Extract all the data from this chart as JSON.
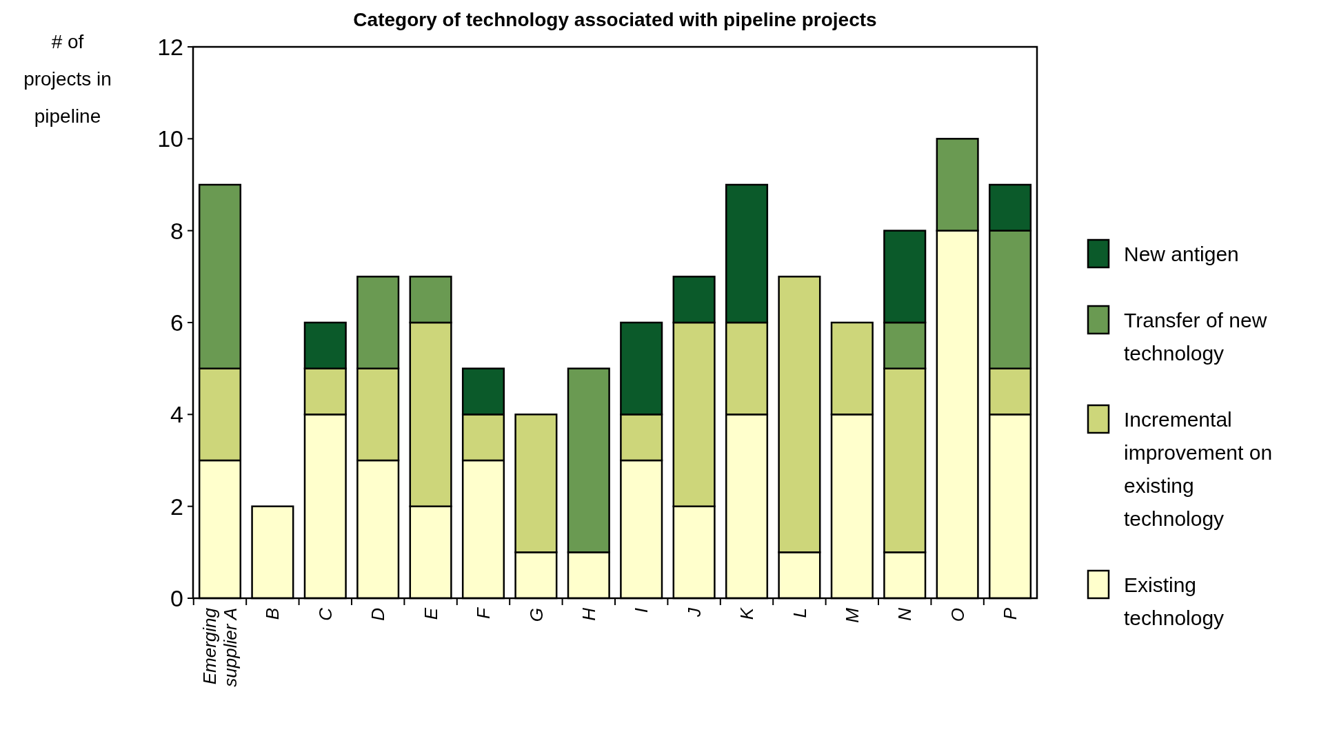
{
  "chart_data": {
    "type": "bar",
    "stacked": true,
    "title": "Category of technology associated with pipeline projects",
    "ylabel": "# of projects in pipeline",
    "categories": [
      "Emerging supplier A",
      "B",
      "C",
      "D",
      "E",
      "F",
      "G",
      "H",
      "I",
      "J",
      "K",
      "L",
      "M",
      "N",
      "O",
      "P"
    ],
    "series": [
      {
        "name": "Existing technology",
        "color": "#ffffcc",
        "values": [
          3,
          2,
          4,
          3,
          2,
          3,
          1,
          1,
          3,
          2,
          4,
          1,
          4,
          1,
          8,
          4
        ]
      },
      {
        "name": "Incremental improvement on existing technology",
        "color": "#cdd67a",
        "values": [
          2,
          0,
          1,
          2,
          4,
          1,
          3,
          0,
          1,
          4,
          2,
          6,
          2,
          4,
          0,
          1
        ]
      },
      {
        "name": "Transfer of new technology",
        "color": "#6a9a52",
        "values": [
          4,
          0,
          0,
          2,
          1,
          0,
          0,
          4,
          0,
          0,
          0,
          0,
          0,
          1,
          2,
          3
        ]
      },
      {
        "name": "New antigen",
        "color": "#0b5a2a",
        "values": [
          0,
          0,
          1,
          0,
          0,
          1,
          0,
          0,
          2,
          1,
          3,
          0,
          0,
          2,
          0,
          1
        ]
      }
    ],
    "ylim": [
      0,
      12
    ],
    "yticks": [
      0,
      2,
      4,
      6,
      8,
      10,
      12
    ],
    "legend": "right",
    "grid": false
  }
}
